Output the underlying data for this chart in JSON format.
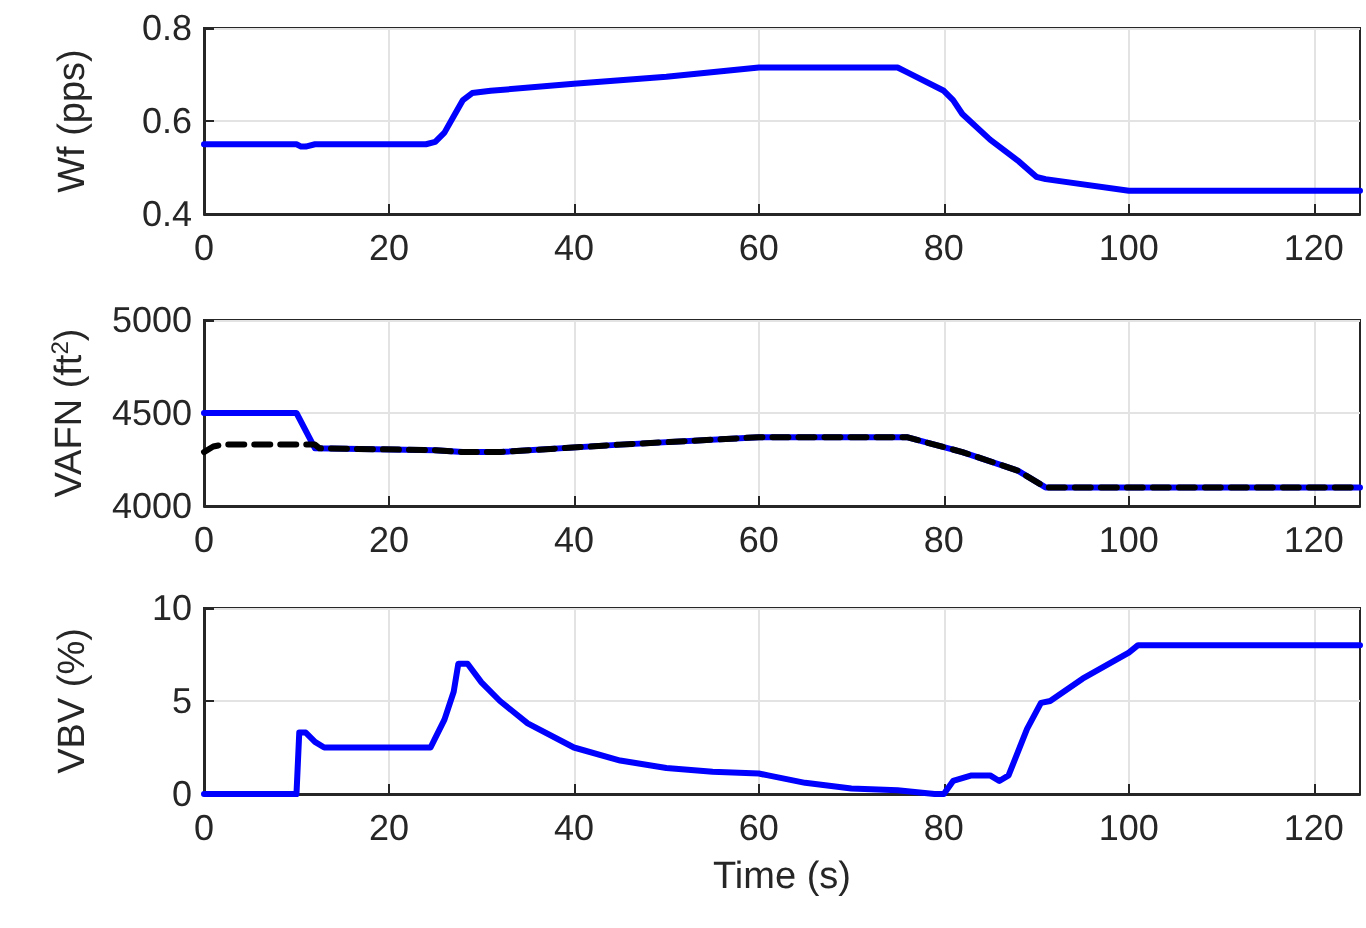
{
  "chart_data": [
    {
      "type": "line",
      "ylabel": "Wf (pps)",
      "xlim": [
        0,
        125
      ],
      "xticks": [
        0,
        20,
        40,
        60,
        80,
        100,
        120
      ],
      "ylim": [
        0.4,
        0.8
      ],
      "yticks": [
        0.4,
        0.6,
        0.8
      ],
      "grid": true,
      "marker": "none",
      "series": [
        {
          "color": "#0000ff",
          "line_style": "solid",
          "x": [
            0,
            10,
            10.5,
            11,
            12,
            24,
            25,
            26,
            27,
            28,
            29,
            31,
            40,
            50,
            60,
            75,
            76,
            80,
            81,
            82,
            85,
            88,
            90,
            91,
            100,
            125
          ],
          "values": [
            0.55,
            0.55,
            0.545,
            0.545,
            0.55,
            0.55,
            0.555,
            0.575,
            0.61,
            0.645,
            0.66,
            0.665,
            0.68,
            0.695,
            0.715,
            0.715,
            0.705,
            0.665,
            0.645,
            0.615,
            0.56,
            0.515,
            0.48,
            0.475,
            0.45,
            0.45
          ]
        }
      ]
    },
    {
      "type": "line",
      "ylabel": "VAFN (ft$^{2}$)",
      "xlim": [
        0,
        125
      ],
      "xticks": [
        0,
        20,
        40,
        60,
        80,
        100,
        120
      ],
      "ylim": [
        4000,
        5000
      ],
      "yticks": [
        4000,
        4500,
        5000
      ],
      "grid": true,
      "marker": "none",
      "series": [
        {
          "color": "#0000ff",
          "line_style": "solid",
          "x": [
            0,
            10,
            12,
            25,
            28,
            32,
            45,
            60,
            76,
            82,
            88,
            91,
            125
          ],
          "values": [
            4500,
            4500,
            4310,
            4300,
            4290,
            4290,
            4330,
            4370,
            4370,
            4290,
            4190,
            4100,
            4100
          ]
        },
        {
          "color": "#000000",
          "line_style": "dashed",
          "x": [
            0,
            1,
            2,
            12,
            12.5,
            25,
            28,
            32,
            45,
            60,
            76,
            82,
            88,
            91,
            125
          ],
          "values": [
            4290,
            4320,
            4330,
            4330,
            4310,
            4300,
            4290,
            4290,
            4330,
            4370,
            4370,
            4290,
            4190,
            4100,
            4100
          ]
        }
      ]
    },
    {
      "type": "line",
      "xlabel": "Time (s)",
      "ylabel": "VBV (%)",
      "xlim": [
        0,
        125
      ],
      "xticks": [
        0,
        20,
        40,
        60,
        80,
        100,
        120
      ],
      "ylim": [
        0,
        10
      ],
      "yticks": [
        0,
        5,
        10
      ],
      "grid": true,
      "marker": "none",
      "series": [
        {
          "color": "#0000ff",
          "line_style": "solid",
          "x": [
            0,
            10,
            10.3,
            11,
            12,
            13,
            24.5,
            25,
            26,
            27,
            27.5,
            28.5,
            30,
            32,
            35,
            40,
            45,
            50,
            55,
            60,
            61,
            65,
            70,
            75,
            79,
            80,
            81,
            83,
            85,
            86,
            87,
            89,
            90.5,
            91.5,
            95,
            100,
            101,
            125
          ],
          "values": [
            0,
            0,
            3.3,
            3.3,
            2.8,
            2.5,
            2.5,
            3,
            4,
            5.5,
            7,
            7,
            6,
            5,
            3.8,
            2.5,
            1.8,
            1.4,
            1.2,
            1.1,
            1.0,
            0.6,
            0.3,
            0.2,
            0,
            0,
            0.7,
            1.0,
            1.0,
            0.7,
            1.0,
            3.5,
            4.9,
            5,
            6.2,
            7.6,
            8,
            8
          ]
        }
      ]
    }
  ]
}
